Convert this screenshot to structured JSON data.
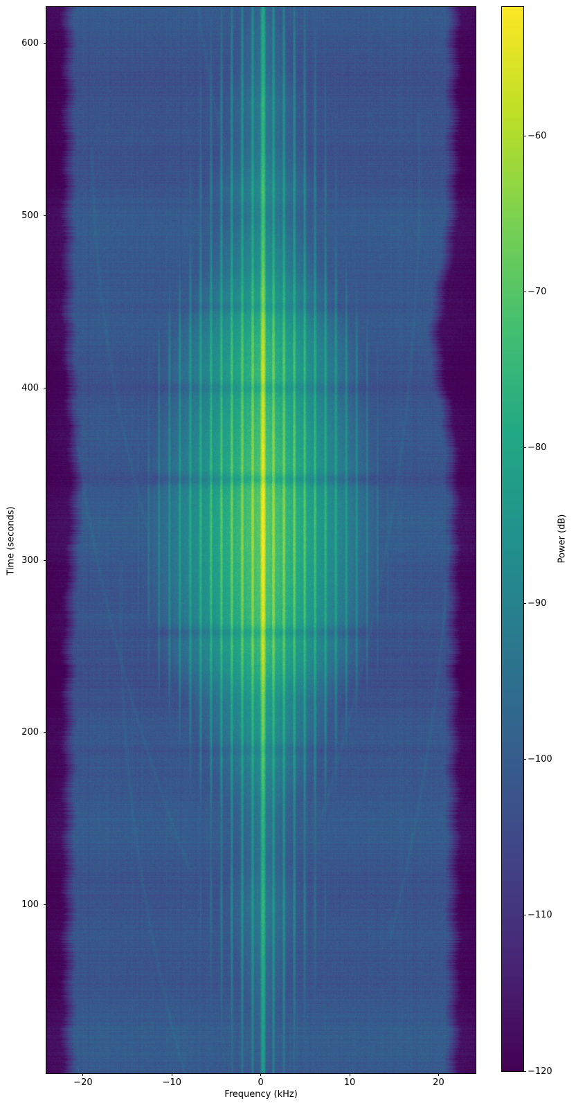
{
  "chart_data": {
    "type": "heatmap",
    "subtype": "doppler-spectrogram",
    "title": "",
    "xlabel": "Frequency (kHz)",
    "ylabel": "Time (seconds)",
    "colorbar_label": "Power (dB)",
    "xlim": [
      -24.12,
      24.17
    ],
    "ylim": [
      2.1,
      621.3
    ],
    "clim": [
      -120,
      -51.7
    ],
    "xticks": [
      -20,
      -10,
      0,
      10,
      20
    ],
    "xtick_labels": [
      "−20",
      "−10",
      "0",
      "10",
      "20"
    ],
    "yticks": [
      100,
      200,
      300,
      400,
      500,
      600
    ],
    "ytick_labels": [
      "100",
      "200",
      "300",
      "400",
      "500",
      "600"
    ],
    "colorbar_ticks": [
      -60,
      -70,
      -80,
      -90,
      -100,
      -110,
      -120
    ],
    "colorbar_tick_labels": [
      "−60",
      "−70",
      "−80",
      "−90",
      "−100",
      "−110",
      "−120"
    ],
    "colormap": "viridis",
    "grid": false,
    "colors": {
      "background": "#ffffff",
      "spine": "#000000",
      "cmap_min": "#440154",
      "cmap_mid": "#21918c",
      "cmap_max": "#fde725"
    },
    "features": {
      "noise_floor_db": -101.5,
      "carrier_freq_khz": 0.26,
      "comb_spacing_khz": 1.17,
      "band_edge_start_khz": 20.85,
      "band_edge_full_khz": 22.35,
      "edge_dark_db": -118,
      "carrier_envelope_db": [
        [
          2,
          -83
        ],
        [
          40,
          -80
        ],
        [
          70,
          -77
        ],
        [
          100,
          -74
        ],
        [
          125,
          -77
        ],
        [
          155,
          -75
        ],
        [
          175,
          -71
        ],
        [
          190,
          -68
        ],
        [
          205,
          -66
        ],
        [
          220,
          -64
        ],
        [
          235,
          -59
        ],
        [
          250,
          -56
        ],
        [
          270,
          -54
        ],
        [
          290,
          -52.5
        ],
        [
          310,
          -52
        ],
        [
          335,
          -52
        ],
        [
          355,
          -53.5
        ],
        [
          375,
          -55
        ],
        [
          395,
          -57
        ],
        [
          410,
          -56.5
        ],
        [
          425,
          -58
        ],
        [
          440,
          -61
        ],
        [
          455,
          -64
        ],
        [
          470,
          -68
        ],
        [
          485,
          -70
        ],
        [
          500,
          -73
        ],
        [
          515,
          -70
        ],
        [
          530,
          -73
        ],
        [
          545,
          -75
        ],
        [
          565,
          -74
        ],
        [
          585,
          -77
        ],
        [
          605,
          -78
        ],
        [
          621,
          -80
        ]
      ],
      "envelope_notches": [
        [
          347,
          5
        ],
        [
          258,
          4.5
        ],
        [
          400,
          3.5
        ],
        [
          190,
          3
        ],
        [
          447,
          3
        ]
      ],
      "right_edge_notch": {
        "t": 430,
        "depth_khz": 2.0,
        "width_s": 45
      },
      "left_edge_notch": {
        "t": 340,
        "depth_khz": 0.9,
        "width_s": 55
      },
      "doppler_tracks": [
        {
          "t0": 384,
          "f0": -15.8,
          "slope": -0.039,
          "curv": 0.00012,
          "trange": [
            170,
            540
          ]
        },
        {
          "t0": 330,
          "f0": -19.5,
          "slope": -0.034,
          "curv": 0.0001,
          "trange": [
            120,
            480
          ]
        },
        {
          "t0": 560,
          "f0": -5.0,
          "slope": -0.042,
          "curv": 0.00015,
          "trange": [
            470,
            621
          ]
        },
        {
          "t0": 384,
          "f0": 16.3,
          "slope": 0.022,
          "curv": -8e-05,
          "trange": [
            150,
            560
          ]
        },
        {
          "t0": 250,
          "f0": 20.3,
          "slope": 0.02,
          "curv": -8e-05,
          "trange": [
            80,
            430
          ]
        },
        {
          "t0": 120,
          "f0": -13.5,
          "slope": -0.03,
          "curv": 0.0001,
          "trange": [
            2,
            300
          ]
        }
      ]
    }
  }
}
